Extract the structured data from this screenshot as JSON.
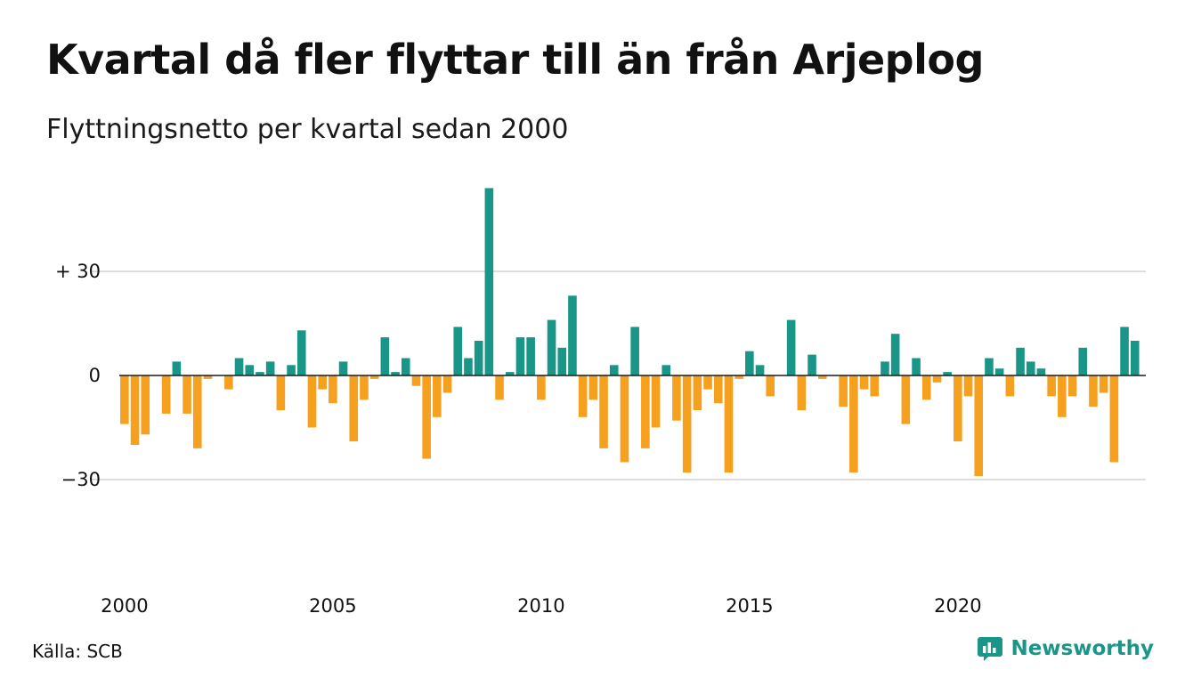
{
  "title": "Kvartal då fler flyttar till än från Arjeplog",
  "subtitle": "Flyttningsnetto per kvartal sedan 2000",
  "source": "Källa: SCB",
  "brand": "Newsworthy",
  "colors": {
    "positive": "#1a9688",
    "negative": "#f5a01f",
    "grid": "#dddddd",
    "zero_line": "#1a1a1a",
    "brand": "#1a9688"
  },
  "chart_data": {
    "type": "bar",
    "x_start": 2000,
    "periods_per_year": 4,
    "ylim": [
      -53,
      55
    ],
    "yticks": [
      {
        "value": 30,
        "label": "+ 30"
      },
      {
        "value": 0,
        "label": "0"
      },
      {
        "value": -30,
        "label": "−30"
      }
    ],
    "xticks": [
      {
        "year": 2000,
        "label": "2000"
      },
      {
        "year": 2005,
        "label": "2005"
      },
      {
        "year": 2010,
        "label": "2010"
      },
      {
        "year": 2015,
        "label": "2015"
      },
      {
        "year": 2020,
        "label": "2020"
      }
    ],
    "values": [
      -14,
      -20,
      -17,
      0,
      -11,
      4,
      -11,
      -21,
      -1,
      0,
      -4,
      5,
      3,
      1,
      4,
      -10,
      3,
      13,
      -15,
      -4,
      -8,
      4,
      -19,
      -7,
      -1,
      11,
      1,
      5,
      -3,
      -24,
      -12,
      -5,
      14,
      5,
      10,
      54,
      -7,
      1,
      11,
      11,
      -7,
      16,
      8,
      23,
      -12,
      -7,
      -21,
      3,
      -25,
      14,
      -21,
      -15,
      3,
      -13,
      -28,
      -10,
      -4,
      -8,
      -28,
      -1,
      7,
      3,
      -6,
      0,
      16,
      -10,
      6,
      -1,
      0,
      -9,
      -28,
      -4,
      -6,
      4,
      12,
      -14,
      5,
      -7,
      -2,
      1,
      -19,
      -6,
      -29,
      5,
      2,
      -6,
      8,
      4,
      2,
      -6,
      -12,
      -6,
      8,
      -9,
      -5,
      -25,
      14,
      10
    ]
  }
}
